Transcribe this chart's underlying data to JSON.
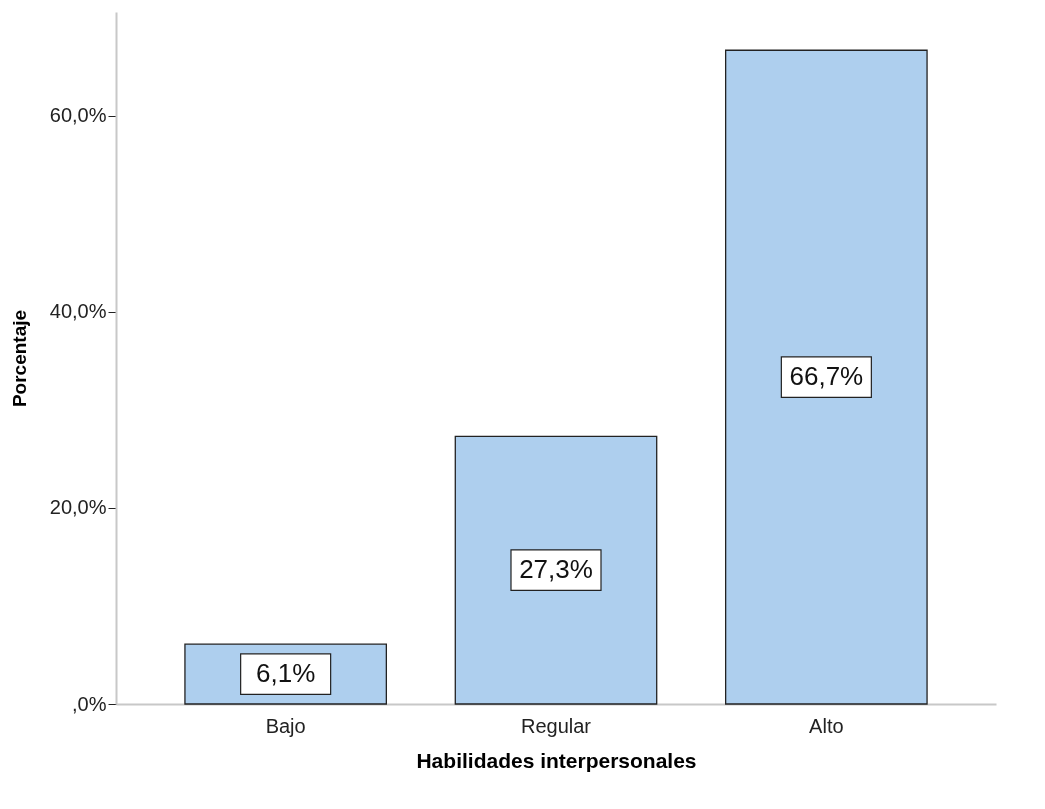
{
  "chart_data": {
    "type": "bar",
    "xlabel": "Habilidades interpersonales",
    "ylabel": "Porcentaje",
    "categories": [
      "Bajo",
      "Regular",
      "Alto"
    ],
    "values": [
      6.1,
      27.3,
      66.7
    ],
    "value_labels": [
      "6,1%",
      "27,3%",
      "66,7%"
    ],
    "color": "#aecfee",
    "ylim": [
      0,
      70.6
    ],
    "yticks": [
      {
        "value": 0,
        "label": ",0%"
      },
      {
        "value": 20,
        "label": "20,0%"
      },
      {
        "value": 40,
        "label": "40,0%"
      },
      {
        "value": 60,
        "label": "60,0%"
      }
    ],
    "grid": false
  }
}
